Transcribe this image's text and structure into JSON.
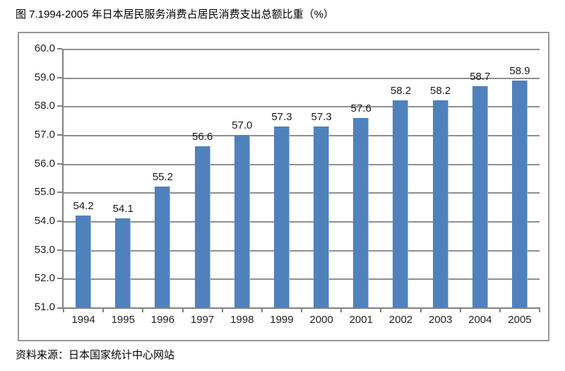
{
  "page": {
    "title": "图 7.1994-2005 年日本居民服务消费占居民消费支出总额比重（%）",
    "source": "资料来源：日本国家统计中心网站"
  },
  "chart_data": {
    "type": "bar",
    "title": "图 7.1994-2005 年日本居民服务消费占居民消费支出总额比重（%）",
    "categories": [
      "1994",
      "1995",
      "1996",
      "1997",
      "1998",
      "1999",
      "2000",
      "2001",
      "2002",
      "2003",
      "2004",
      "2005"
    ],
    "values": [
      54.2,
      54.1,
      55.2,
      56.6,
      57.0,
      57.3,
      57.3,
      57.6,
      58.2,
      58.2,
      58.7,
      58.9
    ],
    "value_labels": [
      "54.2",
      "54.1",
      "55.2",
      "56.6",
      "57.0",
      "57.3",
      "57.3",
      "57.6",
      "58.2",
      "58.2",
      "58.7",
      "58.9"
    ],
    "xlabel": "",
    "ylabel": "",
    "ylim": [
      51.0,
      60.0
    ],
    "ytick_step": 1.0,
    "ytick_labels": [
      "51.0",
      "52.0",
      "53.0",
      "54.0",
      "55.0",
      "56.0",
      "57.0",
      "58.0",
      "59.0",
      "60.0"
    ],
    "grid": true,
    "legend": "none",
    "data_labels": true,
    "bar_color": "#4f81bd",
    "gridline_color": "#8f8f8f",
    "axis_color": "#808080",
    "frame_border_color": "#969696"
  }
}
